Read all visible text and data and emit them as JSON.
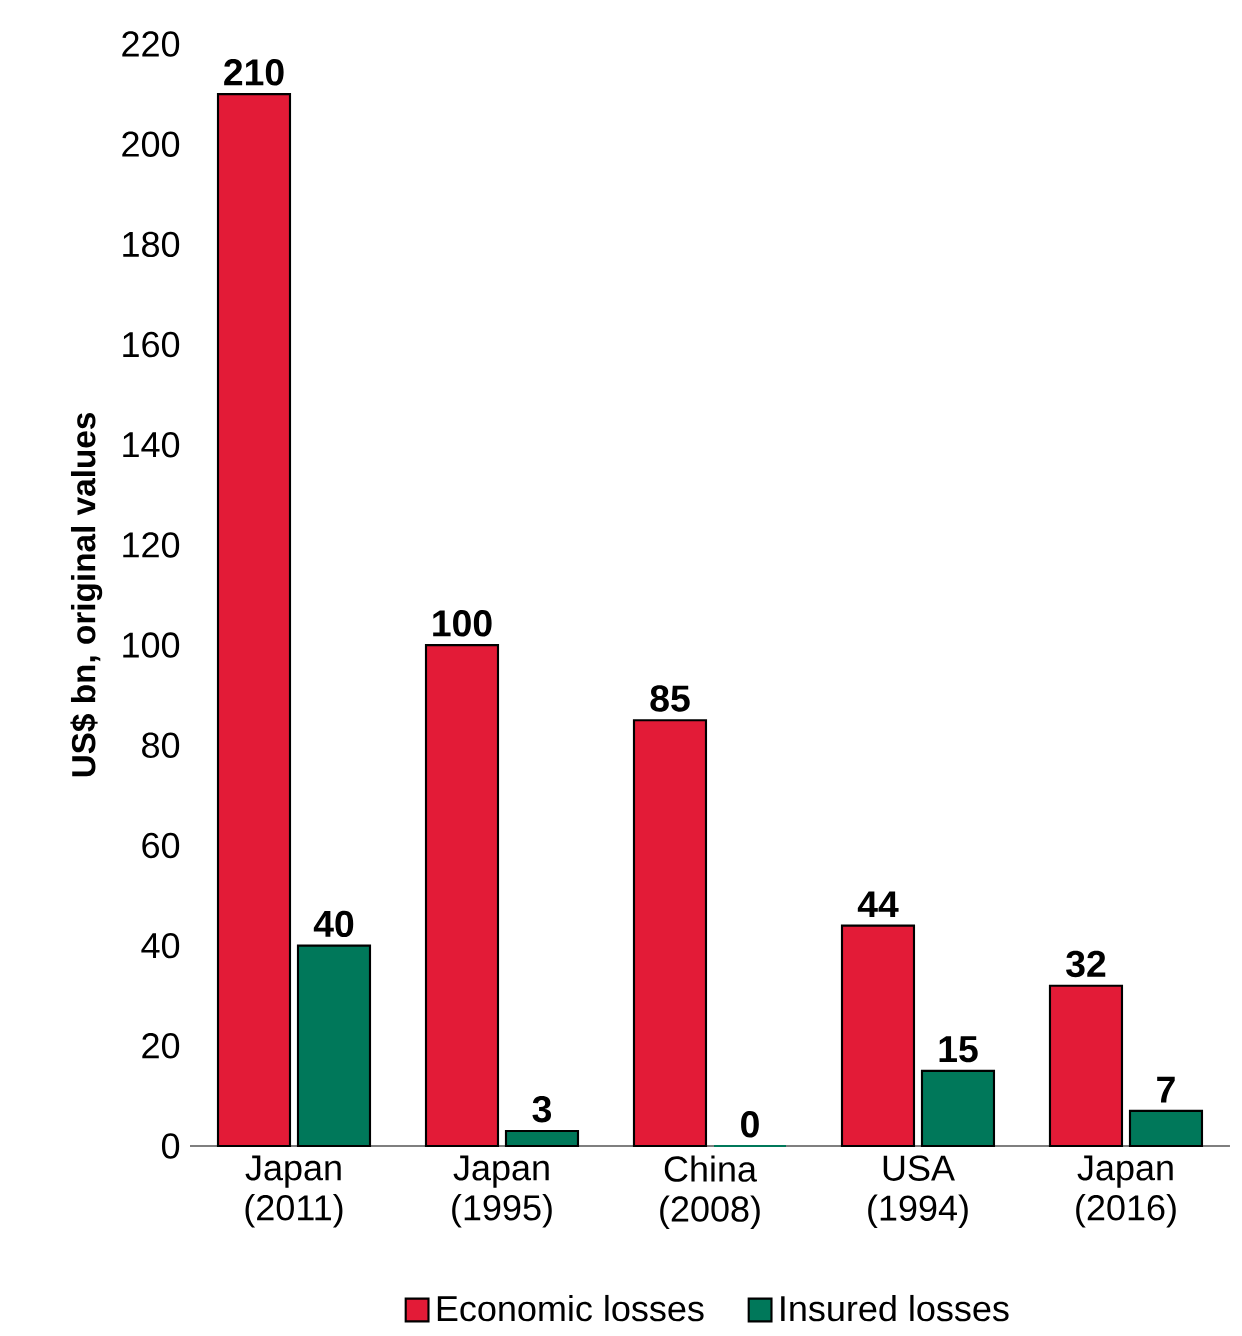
{
  "chart_data": {
    "type": "bar",
    "ylabel": "US$ bn, original values",
    "categories": [
      "Japan (2011)",
      "Japan (1995)",
      "China (2008)",
      "USA (1994)",
      "Japan (2016)"
    ],
    "series": [
      {
        "name": "Economic losses",
        "color": "#e31b37",
        "values": [
          210,
          100,
          85,
          44,
          32
        ]
      },
      {
        "name": "Insured losses",
        "color": "#00785a",
        "values": [
          40,
          3,
          0,
          15,
          7
        ]
      }
    ],
    "ylim": [
      0,
      220
    ],
    "yticks": [
      0,
      20,
      40,
      60,
      80,
      100,
      120,
      140,
      160,
      180,
      200,
      220
    ],
    "data_labels": true,
    "legend": "bottom"
  }
}
